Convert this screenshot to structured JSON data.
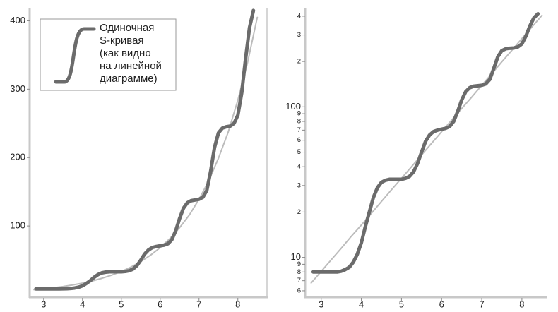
{
  "chart_data": [
    {
      "type": "line",
      "legend": "upper left",
      "log": false,
      "xlim": [
        2.64,
        8.75
      ],
      "xticks": [
        3,
        4,
        5,
        6,
        7,
        8
      ],
      "ylim": [
        0,
        418
      ],
      "yticks": [
        100,
        200,
        300,
        400
      ],
      "series": [
        {
          "color": "#bcbcbc",
          "x": [
            2.75,
            3.0,
            3.25,
            3.5,
            3.75,
            4.0,
            4.25,
            4.5,
            4.75,
            5.0,
            5.25,
            5.5,
            5.75,
            6.0,
            6.25,
            6.5,
            6.75,
            7.0,
            7.25,
            7.5,
            7.75,
            8.0,
            8.25,
            8.5
          ],
          "values": [
            6.76,
            8.07,
            9.64,
            11.5,
            13.8,
            16.4,
            19.6,
            23.5,
            28.1,
            33.5,
            40.0,
            47.9,
            57.2,
            68.3,
            81.6,
            97.5,
            116,
            139,
            166,
            199,
            237,
            284,
            339,
            405
          ]
        },
        {
          "name": "Одиночная\nS-кривая\n(как видно\nна линейной\nдиаграмме)",
          "color": "#6b6b6b",
          "x": [
            2.8,
            2.9,
            3.0,
            3.1,
            3.2,
            3.3,
            3.4,
            3.5,
            3.6,
            3.7,
            3.8,
            3.9,
            4.0,
            4.1,
            4.2,
            4.3,
            4.4,
            4.5,
            4.6,
            4.7,
            4.8,
            4.9,
            5.0,
            5.1,
            5.2,
            5.3,
            5.4,
            5.5,
            5.6,
            5.7,
            5.8,
            5.9,
            6.0,
            6.1,
            6.2,
            6.3,
            6.4,
            6.5,
            6.6,
            6.7,
            6.8,
            6.9,
            7.0,
            7.1,
            7.2,
            7.3,
            7.4,
            7.5,
            7.6,
            7.7,
            7.8,
            7.9,
            8.0,
            8.1,
            8.2,
            8.3,
            8.4
          ],
          "values": [
            8,
            8,
            8,
            8,
            8,
            8,
            8,
            8.1,
            8.3,
            8.6,
            9.3,
            10.5,
            12.5,
            16,
            20,
            25,
            29,
            31.5,
            32.5,
            33,
            33,
            33,
            33,
            33.5,
            34.5,
            37,
            42,
            50,
            59,
            65,
            68.5,
            70,
            71,
            72,
            74,
            80,
            93,
            111,
            126,
            134,
            137,
            138,
            139,
            142,
            152,
            180,
            215,
            236,
            243,
            245,
            246,
            250,
            262,
            295,
            345,
            390,
            415
          ]
        }
      ]
    },
    {
      "type": "line",
      "log": true,
      "xlim": [
        2.6,
        8.6
      ],
      "xticks": [
        3,
        4,
        5,
        6,
        7,
        8
      ],
      "ylim": [
        5.5,
        450
      ],
      "yticks": [
        6,
        7,
        8,
        9,
        10,
        {
          "value": 20,
          "label": "2"
        },
        {
          "value": 30,
          "label": "3"
        },
        {
          "value": 40,
          "label": "4"
        },
        {
          "value": 50,
          "label": "5"
        },
        {
          "value": 60,
          "label": "6"
        },
        {
          "value": 70,
          "label": "7"
        },
        {
          "value": 80,
          "label": "8"
        },
        {
          "value": 90,
          "label": "9"
        },
        100,
        {
          "value": 200,
          "label": "2"
        },
        {
          "value": 300,
          "label": "3"
        },
        {
          "value": 400,
          "label": "4"
        }
      ],
      "series": [
        {
          "color": "#bcbcbc",
          "x": [
            2.75,
            3.0,
            3.25,
            3.5,
            3.75,
            4.0,
            4.25,
            4.5,
            4.75,
            5.0,
            5.25,
            5.5,
            5.75,
            6.0,
            6.25,
            6.5,
            6.75,
            7.0,
            7.25,
            7.5,
            7.75,
            8.0,
            8.25,
            8.5
          ],
          "values": [
            6.76,
            8.07,
            9.64,
            11.5,
            13.8,
            16.4,
            19.6,
            23.5,
            28.1,
            33.5,
            40.0,
            47.9,
            57.2,
            68.3,
            81.6,
            97.5,
            116,
            139,
            166,
            199,
            237,
            284,
            339,
            405
          ]
        },
        {
          "color": "#6b6b6b",
          "x": [
            2.8,
            2.9,
            3.0,
            3.1,
            3.2,
            3.3,
            3.4,
            3.5,
            3.6,
            3.7,
            3.8,
            3.9,
            4.0,
            4.1,
            4.2,
            4.3,
            4.4,
            4.5,
            4.6,
            4.7,
            4.8,
            4.9,
            5.0,
            5.1,
            5.2,
            5.3,
            5.4,
            5.5,
            5.6,
            5.7,
            5.8,
            5.9,
            6.0,
            6.1,
            6.2,
            6.3,
            6.4,
            6.5,
            6.6,
            6.7,
            6.8,
            6.9,
            7.0,
            7.1,
            7.2,
            7.3,
            7.4,
            7.5,
            7.6,
            7.7,
            7.8,
            7.9,
            8.0,
            8.1,
            8.2,
            8.3,
            8.4
          ],
          "values": [
            8,
            8,
            8,
            8,
            8,
            8,
            8,
            8.1,
            8.3,
            8.6,
            9.3,
            10.5,
            12.5,
            16,
            20,
            25,
            29,
            31.5,
            32.5,
            33,
            33,
            33,
            33,
            33.5,
            34.5,
            37,
            42,
            50,
            59,
            65,
            68.5,
            70,
            71,
            72,
            74,
            80,
            93,
            111,
            126,
            134,
            137,
            138,
            139,
            142,
            152,
            180,
            215,
            236,
            243,
            245,
            246,
            250,
            262,
            295,
            345,
            390,
            415
          ]
        }
      ]
    }
  ]
}
